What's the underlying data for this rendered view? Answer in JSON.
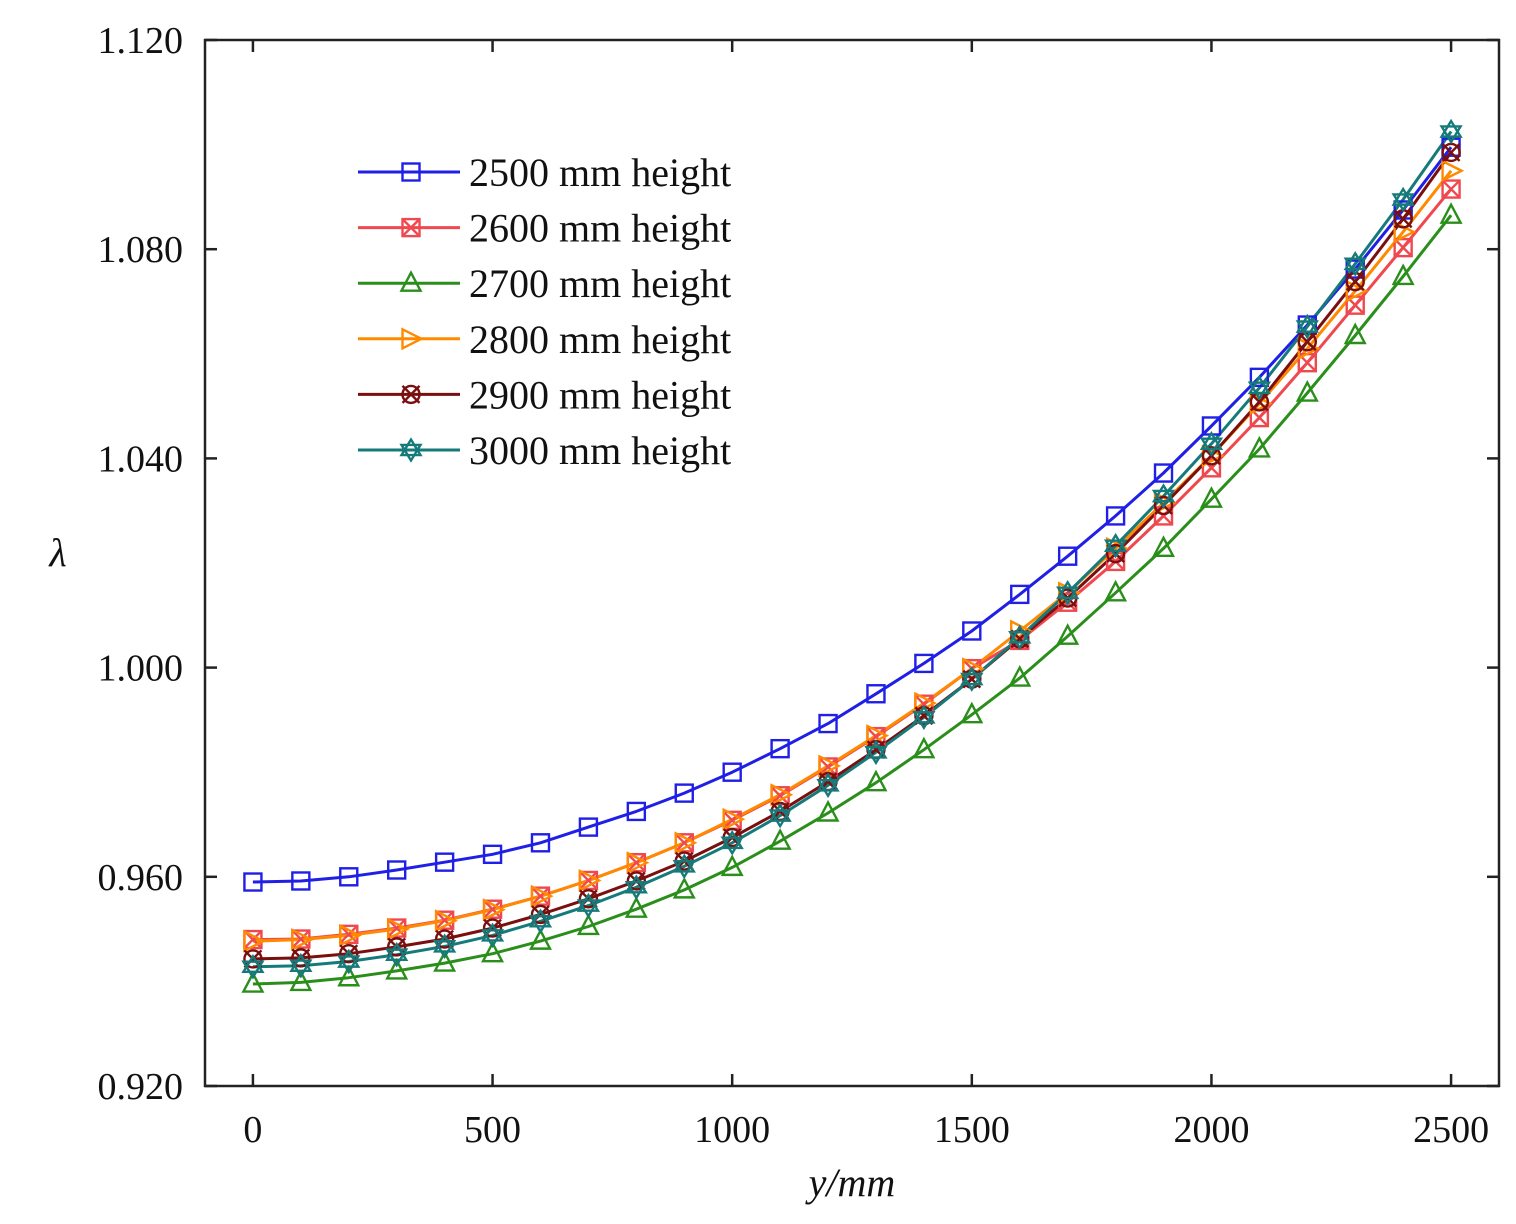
{
  "chart_data": {
    "type": "line",
    "title": "",
    "xlabel": "y/mm",
    "ylabel": "λ",
    "xlim": [
      -100,
      2600
    ],
    "ylim": [
      0.92,
      1.12
    ],
    "xticks": [
      0,
      500,
      1000,
      1500,
      2000,
      2500
    ],
    "yticks": [
      0.92,
      0.96,
      1.0,
      1.04,
      1.08,
      1.12
    ],
    "xtick_labels": [
      "0",
      "500",
      "1000",
      "1500",
      "2000",
      "2500"
    ],
    "ytick_labels": [
      "0.920",
      "0.960",
      "1.000",
      "1.040",
      "1.080",
      "1.120"
    ],
    "grid": false,
    "legend_position": "top-left",
    "x": [
      0,
      100,
      200,
      300,
      400,
      500,
      600,
      700,
      800,
      900,
      1000,
      1100,
      1200,
      1300,
      1400,
      1500,
      1600,
      1700,
      1800,
      1900,
      2000,
      2100,
      2200,
      2300,
      2400,
      2500
    ],
    "series": [
      {
        "name": "2500 mm height",
        "color": "#1f1fe6",
        "marker": "square",
        "values": [
          0.959,
          0.9592,
          0.96,
          0.9613,
          0.9628,
          0.9643,
          0.9665,
          0.9695,
          0.9725,
          0.976,
          0.98,
          0.9845,
          0.9893,
          0.995,
          1.0008,
          1.007,
          1.014,
          1.0213,
          1.029,
          1.0372,
          1.0462,
          1.0555,
          1.0655,
          1.0762,
          1.0875,
          1.0995
        ]
      },
      {
        "name": "2600 mm height",
        "color": "#f0484f",
        "marker": "x-square",
        "values": [
          0.948,
          0.9481,
          0.949,
          0.9502,
          0.9517,
          0.9538,
          0.9563,
          0.9593,
          0.9627,
          0.9665,
          0.9708,
          0.9755,
          0.981,
          0.9868,
          0.993,
          0.9998,
          1.0052,
          1.0125,
          1.0203,
          1.029,
          1.0382,
          1.0478,
          1.0583,
          1.0693,
          1.0803,
          1.0915
        ]
      },
      {
        "name": "2700 mm height",
        "color": "#2a8f1a",
        "marker": "triangle",
        "values": [
          0.9395,
          0.9398,
          0.9407,
          0.942,
          0.9435,
          0.9453,
          0.9477,
          0.9505,
          0.9538,
          0.9575,
          0.9618,
          0.9668,
          0.9722,
          0.978,
          0.9843,
          0.991,
          0.998,
          1.006,
          1.0143,
          1.0228,
          1.0322,
          1.0418,
          1.0525,
          1.0635,
          1.0748,
          1.0865
        ]
      },
      {
        "name": "2800 mm height",
        "color": "#ff8a00",
        "marker": "right-triangle",
        "values": [
          0.9477,
          0.948,
          0.9488,
          0.95,
          0.9516,
          0.9537,
          0.9563,
          0.9593,
          0.9627,
          0.9665,
          0.971,
          0.9757,
          0.9812,
          0.987,
          0.9932,
          0.9998,
          1.007,
          1.0143,
          1.0228,
          1.0315,
          1.0405,
          1.0505,
          1.061,
          1.072,
          1.0833,
          1.095
        ]
      },
      {
        "name": "2900 mm height",
        "color": "#7a0f0f",
        "marker": "x-circle",
        "values": [
          0.9443,
          0.9445,
          0.9453,
          0.9466,
          0.9481,
          0.9502,
          0.9528,
          0.9558,
          0.9592,
          0.963,
          0.9675,
          0.9725,
          0.9782,
          0.9843,
          0.9908,
          0.9978,
          1.0055,
          1.0133,
          1.0218,
          1.031,
          1.0405,
          1.0508,
          1.0623,
          1.0738,
          1.0858,
          1.0985
        ]
      },
      {
        "name": "3000 mm height",
        "color": "#167a7a",
        "marker": "star",
        "values": [
          0.9428,
          0.943,
          0.9438,
          0.9451,
          0.9467,
          0.9488,
          0.9515,
          0.9545,
          0.958,
          0.962,
          0.9665,
          0.9717,
          0.9775,
          0.9838,
          0.9905,
          0.9978,
          1.0058,
          1.0143,
          1.0233,
          1.0328,
          1.0428,
          1.0535,
          1.0652,
          1.0772,
          1.0895,
          1.1025
        ]
      }
    ]
  }
}
